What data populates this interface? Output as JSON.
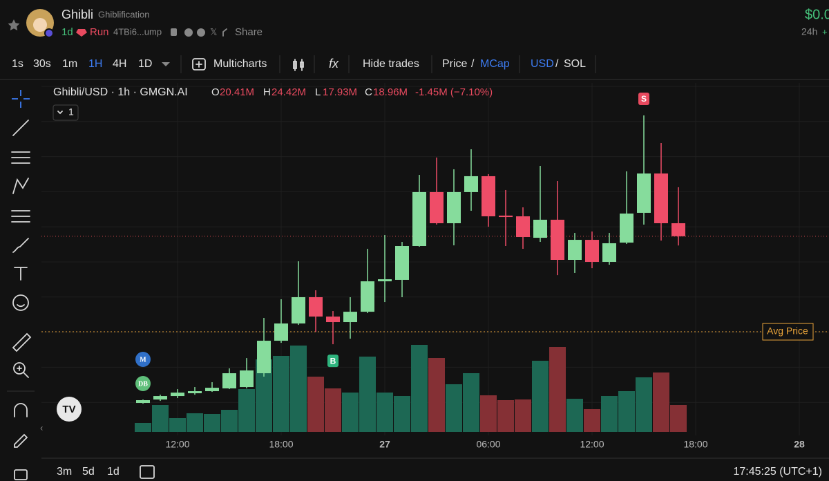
{
  "header": {
    "title": "Ghibli",
    "subtitle": "Ghiblification",
    "age": "1d",
    "status": "Run",
    "address": "4TBi6...ump",
    "share": "Share",
    "price": "$0.0",
    "change_period": "24h",
    "change_sign": "+"
  },
  "toolbar": {
    "intervals": [
      "1s",
      "30s",
      "1m",
      "1H",
      "4H",
      "1D"
    ],
    "active_interval": "1H",
    "multicharts": "Multicharts",
    "hide_trades": "Hide trades",
    "price": "Price",
    "separator": "/",
    "mcap": "MCap",
    "usd": "USD",
    "sol": "SOL"
  },
  "chart_data": {
    "type": "candlestick",
    "title": "Ghibli/USD · 1h · GMGN.AI",
    "legend": {
      "open_label": "O",
      "open": "20.41M",
      "high_label": "H",
      "high": "24.42M",
      "low_label": "L",
      "low": "17.93M",
      "close_label": "C",
      "close": "18.96M",
      "change": "-1.45M (−7.10%)"
    },
    "indicator_count": "1",
    "open": [
      0.39,
      0.77,
      1.16,
      1.47,
      1.7,
      2.01,
      2.16,
      3.7,
      7.32,
      9.24,
      12.17,
      10.01,
      9.4,
      10.55,
      13.94,
      14.1,
      17.87,
      23.88,
      20.41,
      23.88,
      25.65,
      21.26,
      21.18,
      18.79,
      20.8,
      16.33,
      18.56,
      16.1,
      18.25,
      21.57,
      25.95,
      20.41
    ],
    "high": [
      0.77,
      1.31,
      1.93,
      2.16,
      2.7,
      4.24,
      5.39,
      9.86,
      11.94,
      16.17,
      12.94,
      10.63,
      12.17,
      17.56,
      19.1,
      18.33,
      25.8,
      27.73,
      26.42,
      28.65,
      25.88,
      24.11,
      22.18,
      26.8,
      25.11,
      19.33,
      19.49,
      19.33,
      26.19,
      32.42,
      29.34,
      24.42
    ],
    "low": [
      0.31,
      0.62,
      0.93,
      1.31,
      1.62,
      1.93,
      2.01,
      3.32,
      7.09,
      9.09,
      8.32,
      6.93,
      7.55,
      10.4,
      11.63,
      12.17,
      17.79,
      20.26,
      17.95,
      21.8,
      20.02,
      17.87,
      17.56,
      18.33,
      14.63,
      14.87,
      15.4,
      15.79,
      18.1,
      20.26,
      18.48,
      17.93
    ],
    "close": [
      0.7,
      1.16,
      1.54,
      1.7,
      2.08,
      3.7,
      4.01,
      7.32,
      9.24,
      12.17,
      10.01,
      9.4,
      10.55,
      13.94,
      14.17,
      17.87,
      23.88,
      20.41,
      23.88,
      25.65,
      21.18,
      21.1,
      18.87,
      20.8,
      16.33,
      18.56,
      16.1,
      18.18,
      21.49,
      25.95,
      20.41,
      18.96
    ],
    "volume": [
      13,
      39,
      20,
      27,
      26,
      32,
      62,
      105,
      110,
      125,
      80,
      63,
      57,
      109,
      57,
      52,
      126,
      107,
      69,
      85,
      53,
      46,
      47,
      103,
      123,
      48,
      33,
      52,
      59,
      79,
      86,
      39
    ],
    "ylim": [
      -2.84,
      36.04
    ],
    "volume_lim": [
      0,
      130
    ],
    "xlim": [
      -5.88,
      39.72
    ],
    "xticks": [
      {
        "value": 2,
        "label": "12:00"
      },
      {
        "value": 8,
        "label": "18:00"
      },
      {
        "value": 14,
        "label": "27"
      },
      {
        "value": 20,
        "label": "06:00"
      },
      {
        "value": 26,
        "label": "12:00"
      },
      {
        "value": 32,
        "label": "18:00"
      },
      {
        "value": 38,
        "label": "28"
      }
    ],
    "up_color": "#86dc9c",
    "down_color": "#ef4d68",
    "volume_up_color": "#1d6854",
    "volume_down_color": "#853035",
    "avg_price": 8.32,
    "avg_price_label": "Avg Price",
    "avg_price_color": "#e8a33a",
    "current_price_color": "#d9484f",
    "markers": [
      {
        "label": "S",
        "x": 29,
        "side": "above",
        "color": "#e84a5f"
      },
      {
        "label": "B",
        "x": 11,
        "side": "below",
        "color": "#2fb47e"
      }
    ],
    "badges": [
      "M",
      "DB"
    ]
  },
  "footer": {
    "ranges": [
      "3m",
      "5d",
      "1d"
    ],
    "clock": "17:45:25 (UTC+1)"
  }
}
